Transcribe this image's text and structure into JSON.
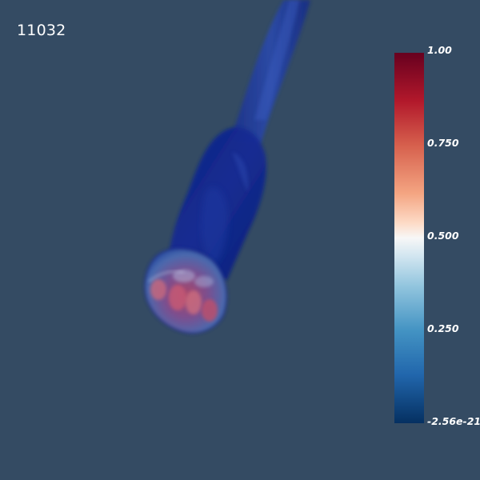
{
  "timestep_label": "11032",
  "colorbar": {
    "tick_labels": [
      "1.00",
      "0.750",
      "0.500",
      "0.250",
      "-2.56e-21"
    ],
    "range": [
      -2.56e-21,
      1.0
    ],
    "colormap_stops": [
      "#67001f",
      "#b2182b",
      "#d6604d",
      "#f4a582",
      "#fddbc7",
      "#f7f7f7",
      "#d1e5f0",
      "#92c5de",
      "#4393c3",
      "#2166ac",
      "#053061"
    ]
  },
  "colors": {
    "background": "#344b63",
    "text": "#ffffff"
  }
}
